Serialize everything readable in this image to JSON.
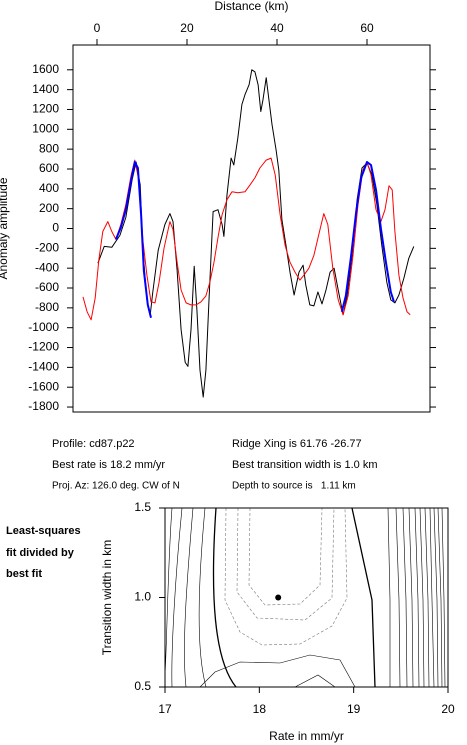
{
  "chart_data": [
    {
      "type": "line",
      "x_label": "Distance (km)",
      "y_label": "Anomaly amplitude",
      "xlim": [
        -5.33,
        74
      ],
      "ylim": [
        -1850,
        1850
      ],
      "xticks": [
        0,
        20,
        40,
        60
      ],
      "yticks": [
        1600,
        1400,
        1200,
        1000,
        800,
        600,
        400,
        200,
        0,
        -200,
        -400,
        -600,
        -800,
        -1000,
        -1200,
        -1400,
        -1600,
        -1800
      ],
      "series": [
        {
          "color": "#000000",
          "line_width": 1,
          "x": [
            0.2,
            1.6,
            3.3,
            5.1,
            6.4,
            7.8,
            8.7,
            9.6,
            10.2,
            11.1,
            11.8,
            12.4,
            13.6,
            15.1,
            16.2,
            16.9,
            17.8,
            18.7,
            19.6,
            20.2,
            20.9,
            21.6,
            22.2,
            22.9,
            23.6,
            24.2,
            24.9,
            25.8,
            26.9,
            27.8,
            28.2,
            28.9,
            29.8,
            30.4,
            31.3,
            32.2,
            32.9,
            33.8,
            34.4,
            35.1,
            35.8,
            36.4,
            36.9,
            37.6,
            38.2,
            38.9,
            39.8,
            40.4,
            41.1,
            42.0,
            42.9,
            43.8,
            44.9,
            45.8,
            46.4,
            47.3,
            48.2,
            49.1,
            50.0,
            50.9,
            51.8,
            52.7,
            53.6,
            54.7,
            55.6,
            56.7,
            57.8,
            58.9,
            60.0,
            61.1,
            62.2,
            63.3,
            64.4,
            65.3,
            66.2,
            67.1,
            68.2,
            69.3,
            70.4
          ],
          "values": [
            -350,
            -180,
            -190,
            -70,
            110,
            490,
            670,
            440,
            -220,
            -720,
            -880,
            -640,
            -220,
            40,
            150,
            70,
            -420,
            -1020,
            -1350,
            -1390,
            -1020,
            -380,
            -820,
            -1430,
            -1700,
            -1430,
            -720,
            170,
            190,
            40,
            -80,
            340,
            710,
            640,
            910,
            1250,
            1350,
            1450,
            1600,
            1580,
            1450,
            1180,
            1300,
            1520,
            1300,
            1050,
            790,
            590,
            90,
            -170,
            -440,
            -670,
            -440,
            -370,
            -570,
            -770,
            -780,
            -640,
            -760,
            -620,
            -440,
            -400,
            -620,
            -870,
            -670,
            -270,
            290,
            610,
            660,
            540,
            240,
            -170,
            -540,
            -720,
            -750,
            -670,
            -500,
            -300,
            -180
          ]
        },
        {
          "color": "#ff0000",
          "line_width": 1,
          "x": [
            -3.1,
            -2.2,
            -1.3,
            -0.4,
            0.4,
            1.3,
            2.4,
            3.3,
            4.2,
            5.3,
            6.4,
            7.6,
            8.4,
            9.3,
            10.2,
            11.1,
            12.0,
            12.9,
            13.8,
            14.9,
            16.2,
            16.9,
            17.8,
            18.7,
            19.8,
            20.9,
            22.0,
            23.1,
            24.2,
            25.1,
            26.0,
            26.9,
            27.8,
            28.9,
            30.0,
            31.3,
            32.9,
            34.0,
            35.1,
            36.2,
            37.6,
            38.7,
            39.6,
            40.7,
            41.8,
            42.9,
            44.0,
            45.1,
            46.0,
            47.1,
            48.2,
            49.3,
            50.4,
            51.3,
            52.4,
            53.6,
            54.7,
            55.8,
            56.9,
            58.0,
            59.1,
            60.0,
            60.9,
            62.0,
            63.1,
            64.0,
            64.9,
            65.6,
            66.2,
            67.1,
            68.0,
            68.9,
            69.6
          ],
          "values": [
            -690,
            -840,
            -920,
            -700,
            -320,
            -30,
            70,
            -30,
            -110,
            40,
            240,
            540,
            690,
            490,
            -120,
            -470,
            -740,
            -750,
            -540,
            -200,
            70,
            -10,
            -340,
            -620,
            -750,
            -770,
            -770,
            -740,
            -680,
            -540,
            -340,
            -90,
            140,
            290,
            370,
            360,
            370,
            440,
            510,
            610,
            690,
            710,
            540,
            140,
            -170,
            -340,
            -440,
            -520,
            -470,
            -400,
            -270,
            -60,
            150,
            40,
            -400,
            -720,
            -870,
            -680,
            -270,
            240,
            590,
            670,
            540,
            190,
            70,
            190,
            430,
            390,
            -30,
            -470,
            -700,
            -840,
            -870
          ]
        },
        {
          "color": "#0000ff",
          "line_width": 2,
          "x": [
            4.2,
            5.3,
            6.4,
            7.6,
            8.4,
            9.1,
            9.8,
            10.4,
            11.3,
            12.0,
            null,
            54.4,
            55.3,
            56.4,
            57.6,
            58.7,
            60.0,
            60.9,
            62.0,
            63.1,
            64.2,
            65.3,
            66.0
          ],
          "values": [
            -110,
            10,
            190,
            490,
            670,
            610,
            140,
            -420,
            -770,
            -900,
            null,
            -840,
            -680,
            -300,
            170,
            510,
            670,
            640,
            390,
            0,
            -340,
            -640,
            -740
          ]
        }
      ]
    },
    {
      "type": "scatter",
      "x_label": "Rate in mm/yr",
      "y_label": "Transition width in km",
      "xlim": [
        17,
        20
      ],
      "ylim": [
        0.5,
        1.5
      ],
      "xticks": [
        17,
        18,
        19,
        20
      ],
      "yticks": [
        0.5,
        {
          "value": 1,
          "label": "1.0"
        },
        1.5
      ],
      "x": [
        18.2
      ],
      "values": [
        1.0
      ],
      "color": "#000000"
    }
  ],
  "info": [
    "Profile: cd87.p22",
    "Best rate is 18.2 mm/yr",
    "Proj. Az: 126.0 deg. CW of N",
    "Ridge Xing is 61.76 -26.77",
    "Best transition width is 1.0 km",
    "Depth to source is   1.11 km"
  ],
  "side_label": [
    "Least-squares",
    "fit divided by",
    "best fit"
  ]
}
